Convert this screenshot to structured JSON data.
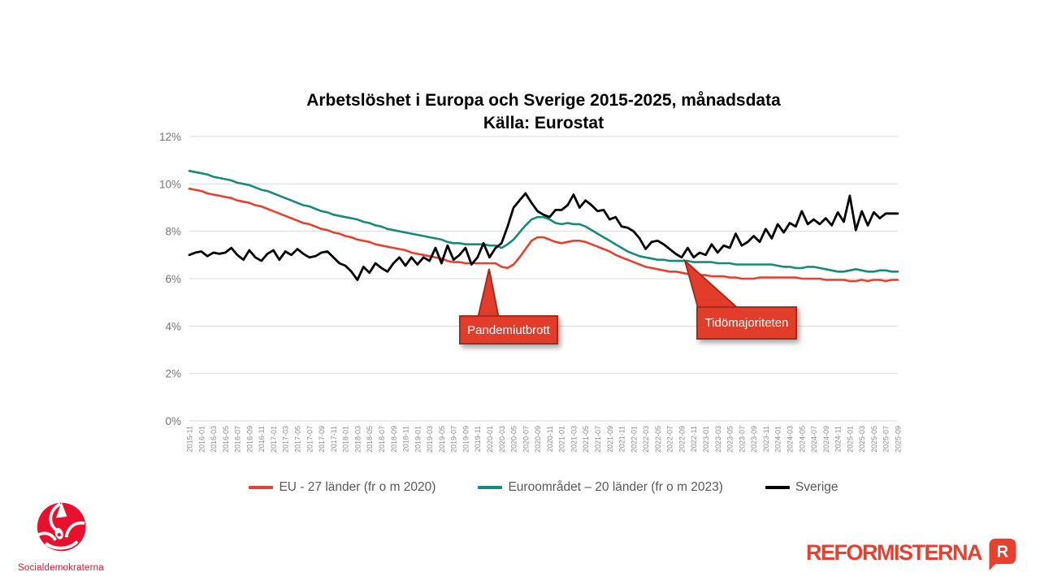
{
  "title": {
    "line1": "Arbetslöshet i Europa och Sverige 2015-2025, månadsdata",
    "line2": "Källa: Eurostat"
  },
  "chart_data": {
    "type": "line",
    "title": "Arbetslöshet i Europa och Sverige 2015-2025, månadsdata",
    "subtitle": "Källa: Eurostat",
    "ylim": [
      0,
      12
    ],
    "ytick_step": 2,
    "ytick_labels": [
      "0%",
      "2%",
      "4%",
      "6%",
      "8%",
      "10%",
      "12%"
    ],
    "grid": "horizontal",
    "legend_position": "bottom",
    "x_start": "2015-11",
    "x_end": "2025-09",
    "x_resolution": "monthly",
    "x_tick_labels": [
      "2015-11",
      "2016-01",
      "2016-03",
      "2016-05",
      "2016-07",
      "2016-09",
      "2016-11",
      "2017-01",
      "2017-03",
      "2017-05",
      "2017-07",
      "2017-09",
      "2017-11",
      "2018-01",
      "2018-03",
      "2018-05",
      "2018-07",
      "2018-09",
      "2018-11",
      "2019-01",
      "2019-03",
      "2019-05",
      "2019-07",
      "2019-09",
      "2019-11",
      "2020-01",
      "2020-03",
      "2020-05",
      "2020-07",
      "2020-09",
      "2020-11",
      "2021-01",
      "2021-03",
      "2021-05",
      "2021-07",
      "2021-09",
      "2021-11",
      "2022-01",
      "2022-03",
      "2022-05",
      "2022-07",
      "2022-09",
      "2022-11",
      "2023-01",
      "2023-03",
      "2023-05",
      "2023-07",
      "2023-09",
      "2023-11",
      "2024-01",
      "2024-03",
      "2024-05",
      "2024-07",
      "2024-09",
      "2024-11",
      "2025-01",
      "2025-03",
      "2025-05",
      "2025-07",
      "2025-09"
    ],
    "series": [
      {
        "name": "EU - 27 länder (fr o m 2020)",
        "color": "#e8402f",
        "values": [
          9.8,
          9.75,
          9.7,
          9.6,
          9.55,
          9.5,
          9.45,
          9.4,
          9.3,
          9.25,
          9.2,
          9.1,
          9.05,
          8.95,
          8.85,
          8.75,
          8.65,
          8.55,
          8.45,
          8.35,
          8.3,
          8.2,
          8.1,
          8.05,
          7.95,
          7.9,
          7.8,
          7.75,
          7.65,
          7.6,
          7.55,
          7.45,
          7.4,
          7.35,
          7.3,
          7.25,
          7.2,
          7.1,
          7.05,
          7.0,
          6.95,
          6.9,
          6.85,
          6.75,
          6.7,
          6.7,
          6.65,
          6.65,
          6.65,
          6.65,
          6.65,
          6.65,
          6.5,
          6.45,
          6.6,
          6.9,
          7.25,
          7.6,
          7.75,
          7.75,
          7.65,
          7.55,
          7.5,
          7.55,
          7.6,
          7.6,
          7.55,
          7.45,
          7.35,
          7.25,
          7.15,
          7.0,
          6.9,
          6.8,
          6.7,
          6.6,
          6.5,
          6.45,
          6.4,
          6.35,
          6.3,
          6.3,
          6.25,
          6.2,
          6.15,
          6.15,
          6.15,
          6.1,
          6.1,
          6.1,
          6.05,
          6.05,
          6.0,
          6.0,
          6.0,
          6.05,
          6.05,
          6.05,
          6.05,
          6.05,
          6.05,
          6.05,
          6.0,
          6.0,
          6.0,
          6.0,
          5.95,
          5.95,
          5.95,
          5.95,
          5.9,
          5.9,
          5.95,
          5.9,
          5.95,
          5.95,
          5.9,
          5.95,
          5.95
        ]
      },
      {
        "name": "Euroområdet – 20 länder (fr o m 2023)",
        "color": "#168a7d",
        "values": [
          10.55,
          10.5,
          10.45,
          10.4,
          10.3,
          10.25,
          10.2,
          10.15,
          10.05,
          10.0,
          9.95,
          9.85,
          9.75,
          9.7,
          9.6,
          9.5,
          9.4,
          9.3,
          9.2,
          9.1,
          9.05,
          8.95,
          8.85,
          8.8,
          8.7,
          8.65,
          8.6,
          8.55,
          8.5,
          8.4,
          8.35,
          8.25,
          8.2,
          8.1,
          8.05,
          8.0,
          7.95,
          7.9,
          7.85,
          7.8,
          7.75,
          7.7,
          7.65,
          7.55,
          7.5,
          7.5,
          7.45,
          7.45,
          7.45,
          7.45,
          7.4,
          7.4,
          7.3,
          7.45,
          7.65,
          7.95,
          8.25,
          8.5,
          8.6,
          8.6,
          8.5,
          8.35,
          8.3,
          8.35,
          8.3,
          8.3,
          8.2,
          8.05,
          7.9,
          7.75,
          7.6,
          7.45,
          7.3,
          7.15,
          7.05,
          6.95,
          6.9,
          6.85,
          6.8,
          6.8,
          6.75,
          6.75,
          6.75,
          6.75,
          6.7,
          6.7,
          6.7,
          6.7,
          6.65,
          6.65,
          6.65,
          6.6,
          6.6,
          6.6,
          6.6,
          6.6,
          6.6,
          6.6,
          6.55,
          6.5,
          6.5,
          6.45,
          6.45,
          6.5,
          6.5,
          6.45,
          6.4,
          6.35,
          6.3,
          6.3,
          6.35,
          6.4,
          6.35,
          6.3,
          6.3,
          6.35,
          6.35,
          6.3,
          6.3
        ]
      },
      {
        "name": "Sverige",
        "color": "#000000",
        "values": [
          7.0,
          7.1,
          7.15,
          6.95,
          7.1,
          7.05,
          7.1,
          7.3,
          7.0,
          6.8,
          7.2,
          6.9,
          6.75,
          7.05,
          7.2,
          6.8,
          7.15,
          7.0,
          7.25,
          7.05,
          6.9,
          6.95,
          7.1,
          7.15,
          6.9,
          6.65,
          6.55,
          6.3,
          5.95,
          6.5,
          6.25,
          6.65,
          6.45,
          6.3,
          6.65,
          6.9,
          6.55,
          6.9,
          6.6,
          6.9,
          6.75,
          7.3,
          6.65,
          7.4,
          6.8,
          7.0,
          7.3,
          6.6,
          6.9,
          7.5,
          6.9,
          7.3,
          7.5,
          8.2,
          9.0,
          9.3,
          9.6,
          9.2,
          8.85,
          8.7,
          8.6,
          8.9,
          8.9,
          9.1,
          9.55,
          9.0,
          9.3,
          9.1,
          8.85,
          8.9,
          8.5,
          8.6,
          8.2,
          8.15,
          8.0,
          7.7,
          7.25,
          7.55,
          7.6,
          7.45,
          7.25,
          7.05,
          6.9,
          7.3,
          6.9,
          7.1,
          7.0,
          7.45,
          7.1,
          7.4,
          7.3,
          7.9,
          7.4,
          7.55,
          7.8,
          7.55,
          8.1,
          7.7,
          8.3,
          7.95,
          8.35,
          8.2,
          8.85,
          8.3,
          8.5,
          8.3,
          8.55,
          8.25,
          8.8,
          8.4,
          9.5,
          8.05,
          8.85,
          8.25,
          8.8,
          8.55,
          8.75,
          8.75,
          8.75
        ]
      }
    ],
    "annotations": [
      {
        "label": "Pandemiutbrott",
        "points_to": "2020-03"
      },
      {
        "label": "Tidömajoriteten",
        "points_to": "2022-10"
      }
    ]
  },
  "legend": {
    "items": [
      "EU - 27 länder (fr o m 2020)",
      "Euroområdet – 20 länder (fr o m 2023)",
      "Sverige"
    ]
  },
  "footer": {
    "socialdemokraterna_label": "Socialdemokraterna",
    "reformisterna_label": "REFORMISTERNA",
    "badge_letter": "R"
  },
  "colors": {
    "line_eu": "#e8402f",
    "line_euro_area": "#168a7d",
    "line_sweden": "#000000",
    "gridline": "#d9d9d9",
    "axis_text": "#757575",
    "callout_fill": "#e23c2b",
    "callout_border": "#a82b1a",
    "sd_red": "#e8112d",
    "reformisterna_red": "#e8402f"
  }
}
